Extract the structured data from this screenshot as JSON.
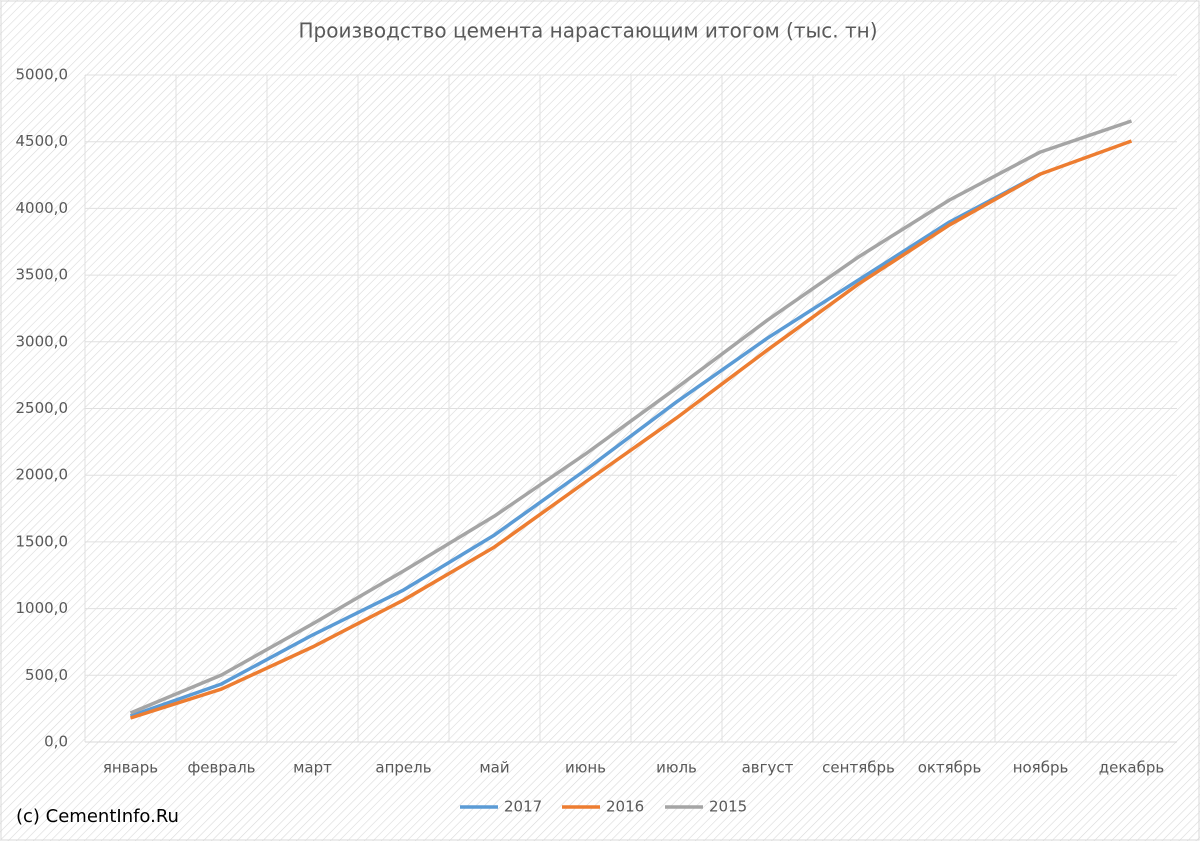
{
  "chart_data": {
    "type": "line",
    "title": "Производство цемента нарастающим итогом (тыс. тн)",
    "categories": [
      "январь",
      "февраль",
      "март",
      "апрель",
      "май",
      "июнь",
      "июль",
      "август",
      "сентябрь",
      "октябрь",
      "ноябрь",
      "декабрь"
    ],
    "series": [
      {
        "name": "2017",
        "color": "#5b9bd5",
        "values": [
          195,
          435,
          802,
          1139,
          1552,
          2039,
          2549,
          3028,
          3463,
          3898,
          4258,
          null
        ]
      },
      {
        "name": "2016",
        "color": "#ed7d31",
        "values": [
          180,
          397,
          712,
          1064,
          1462,
          1949,
          2429,
          2939,
          3433,
          3876,
          4258,
          4505
        ]
      },
      {
        "name": "2015",
        "color": "#a5a5a5",
        "values": [
          217,
          502,
          885,
          1282,
          1694,
          2159,
          2654,
          3163,
          3636,
          4063,
          4423,
          4655
        ]
      }
    ],
    "ylim": [
      0,
      5000
    ],
    "yticks": [
      {
        "value": 0,
        "label": "0,0"
      },
      {
        "value": 500,
        "label": "500,0"
      },
      {
        "value": 1000,
        "label": "1000,0"
      },
      {
        "value": 1500,
        "label": "1500,0"
      },
      {
        "value": 2000,
        "label": "2000,0"
      },
      {
        "value": 2500,
        "label": "2500,0"
      },
      {
        "value": 3000,
        "label": "3000,0"
      },
      {
        "value": 3500,
        "label": "3500,0"
      },
      {
        "value": 4000,
        "label": "4000,0"
      },
      {
        "value": 4500,
        "label": "4500,0"
      },
      {
        "value": 5000,
        "label": "5000,0"
      }
    ],
    "grid": true,
    "legend": "bottom",
    "annotation": "(c) CementInfo.Ru"
  }
}
